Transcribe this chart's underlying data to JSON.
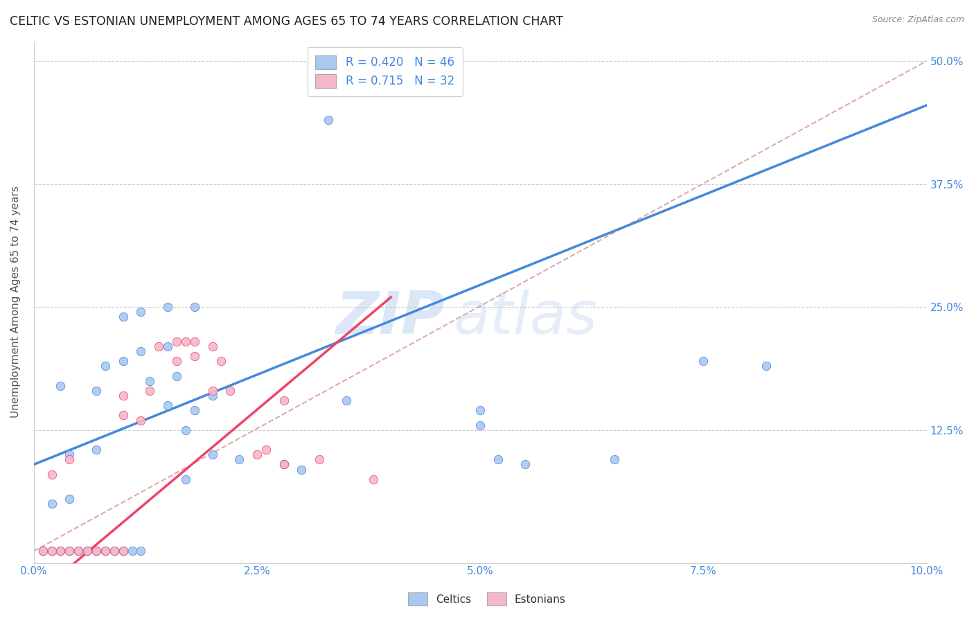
{
  "title": "CELTIC VS ESTONIAN UNEMPLOYMENT AMONG AGES 65 TO 74 YEARS CORRELATION CHART",
  "source": "Source: ZipAtlas.com",
  "ylabel": "Unemployment Among Ages 65 to 74 years",
  "xlim": [
    0.0,
    0.1
  ],
  "ylim": [
    -0.01,
    0.52
  ],
  "xtick_labels": [
    "0.0%",
    "",
    "2.5%",
    "",
    "5.0%",
    "",
    "7.5%",
    "",
    "10.0%"
  ],
  "xtick_vals": [
    0.0,
    0.0125,
    0.025,
    0.0375,
    0.05,
    0.0625,
    0.075,
    0.0875,
    0.1
  ],
  "ytick_labels": [
    "12.5%",
    "25.0%",
    "37.5%",
    "50.0%"
  ],
  "ytick_vals": [
    0.125,
    0.25,
    0.375,
    0.5
  ],
  "celtics_color": "#aac8f0",
  "estonians_color": "#f5b8c8",
  "celtics_line_color": "#4488dd",
  "estonians_line_color": "#ee4466",
  "diagonal_color": "#ddaaaa",
  "legend_R_celtics": "R = 0.420",
  "legend_N_celtics": "N = 46",
  "legend_R_estonians": "R = 0.715",
  "legend_N_estonians": "N = 32",
  "watermark_zip": "ZIP",
  "watermark_atlas": "atlas",
  "background_color": "#ffffff",
  "celtics_scatter": [
    [
      0.001,
      0.002
    ],
    [
      0.002,
      0.002
    ],
    [
      0.003,
      0.002
    ],
    [
      0.004,
      0.002
    ],
    [
      0.005,
      0.002
    ],
    [
      0.006,
      0.002
    ],
    [
      0.007,
      0.002
    ],
    [
      0.008,
      0.002
    ],
    [
      0.009,
      0.002
    ],
    [
      0.01,
      0.002
    ],
    [
      0.011,
      0.002
    ],
    [
      0.012,
      0.002
    ],
    [
      0.002,
      0.05
    ],
    [
      0.004,
      0.055
    ],
    [
      0.004,
      0.1
    ],
    [
      0.007,
      0.105
    ],
    [
      0.003,
      0.17
    ],
    [
      0.007,
      0.165
    ],
    [
      0.008,
      0.19
    ],
    [
      0.01,
      0.195
    ],
    [
      0.012,
      0.205
    ],
    [
      0.015,
      0.21
    ],
    [
      0.01,
      0.24
    ],
    [
      0.012,
      0.245
    ],
    [
      0.015,
      0.25
    ],
    [
      0.018,
      0.25
    ],
    [
      0.013,
      0.175
    ],
    [
      0.016,
      0.18
    ],
    [
      0.015,
      0.15
    ],
    [
      0.018,
      0.145
    ],
    [
      0.02,
      0.16
    ],
    [
      0.017,
      0.125
    ],
    [
      0.02,
      0.1
    ],
    [
      0.023,
      0.095
    ],
    [
      0.017,
      0.075
    ],
    [
      0.028,
      0.09
    ],
    [
      0.03,
      0.085
    ],
    [
      0.035,
      0.155
    ],
    [
      0.05,
      0.145
    ],
    [
      0.05,
      0.13
    ],
    [
      0.052,
      0.095
    ],
    [
      0.055,
      0.09
    ],
    [
      0.065,
      0.095
    ],
    [
      0.075,
      0.195
    ],
    [
      0.082,
      0.19
    ],
    [
      0.033,
      0.44
    ]
  ],
  "estonians_scatter": [
    [
      0.001,
      0.002
    ],
    [
      0.002,
      0.002
    ],
    [
      0.003,
      0.002
    ],
    [
      0.004,
      0.002
    ],
    [
      0.005,
      0.002
    ],
    [
      0.006,
      0.002
    ],
    [
      0.007,
      0.002
    ],
    [
      0.008,
      0.002
    ],
    [
      0.009,
      0.002
    ],
    [
      0.01,
      0.002
    ],
    [
      0.002,
      0.08
    ],
    [
      0.004,
      0.095
    ],
    [
      0.01,
      0.14
    ],
    [
      0.012,
      0.135
    ],
    [
      0.01,
      0.16
    ],
    [
      0.013,
      0.165
    ],
    [
      0.014,
      0.21
    ],
    [
      0.016,
      0.215
    ],
    [
      0.017,
      0.215
    ],
    [
      0.018,
      0.215
    ],
    [
      0.016,
      0.195
    ],
    [
      0.018,
      0.2
    ],
    [
      0.02,
      0.21
    ],
    [
      0.021,
      0.195
    ],
    [
      0.02,
      0.165
    ],
    [
      0.022,
      0.165
    ],
    [
      0.025,
      0.1
    ],
    [
      0.026,
      0.105
    ],
    [
      0.028,
      0.09
    ],
    [
      0.028,
      0.155
    ],
    [
      0.032,
      0.095
    ],
    [
      0.038,
      0.075
    ]
  ],
  "celtics_trendline": [
    [
      0.0,
      0.09
    ],
    [
      0.1,
      0.455
    ]
  ],
  "estonians_trendline": [
    [
      -0.002,
      -0.06
    ],
    [
      0.04,
      0.26
    ]
  ],
  "diagonal_line": [
    [
      0.0,
      0.002
    ],
    [
      0.1,
      0.5
    ]
  ]
}
